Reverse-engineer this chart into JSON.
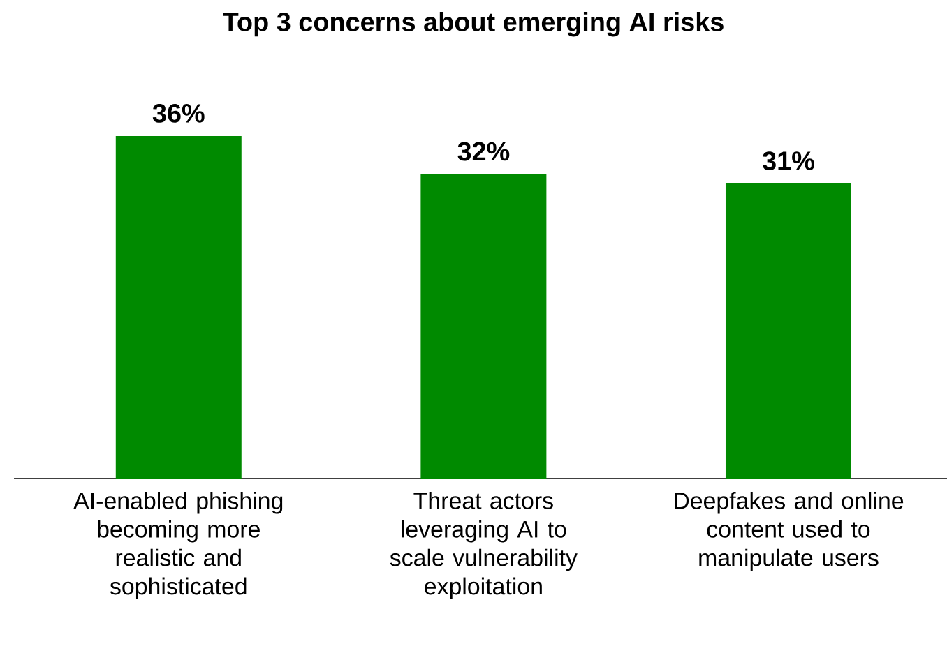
{
  "chart_data": {
    "type": "bar",
    "title": "Top 3 concerns about emerging AI risks",
    "categories": [
      "AI-enabled phishing becoming more realistic and sophisticated",
      "Threat actors leveraging AI to scale vulnerability exploitation",
      "Deepfakes and online content used to manipulate users"
    ],
    "values": [
      36,
      32,
      31
    ],
    "value_labels": [
      "36%",
      "32%",
      "31%"
    ],
    "color": "#008a00"
  }
}
